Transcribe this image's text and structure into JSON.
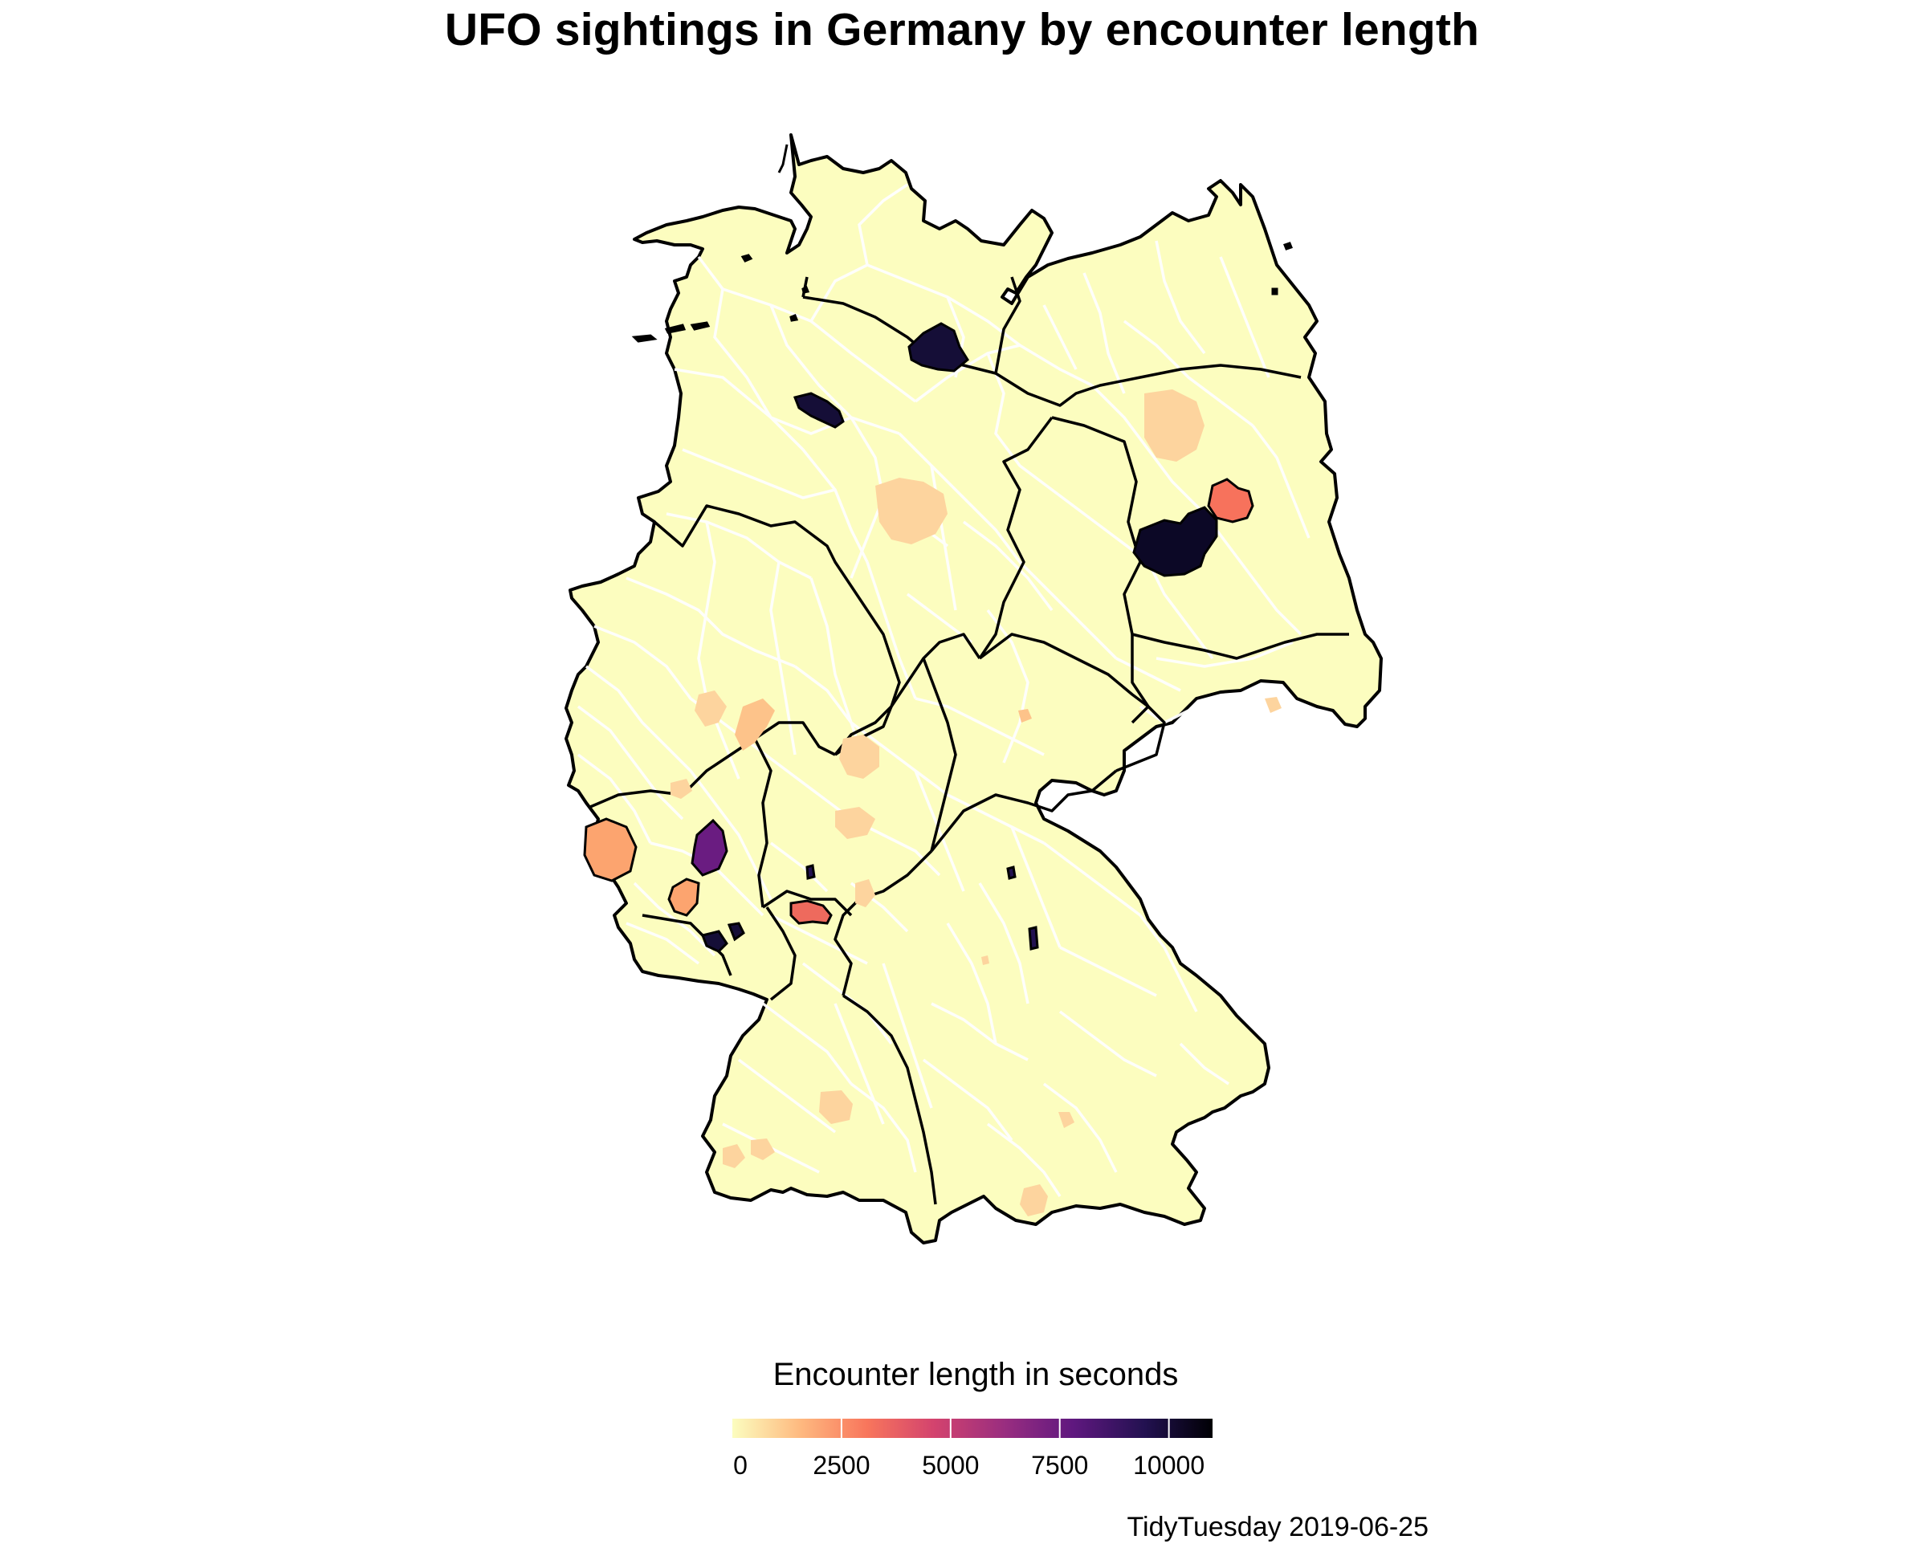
{
  "title": "UFO sightings in Germany by encounter length",
  "caption": "TidyTuesday 2019-06-25",
  "legend": {
    "title": "Encounter length in seconds",
    "ticks": [
      "0",
      "2500",
      "5000",
      "7500",
      "10000"
    ],
    "tick_values": [
      0,
      2500,
      5000,
      7500,
      10000
    ],
    "range": [
      0,
      11000
    ],
    "palette": "magma (reversed)",
    "colors": [
      "#FCFDBF",
      "#FEBA80",
      "#F8765C",
      "#D3436E",
      "#982D80",
      "#5F187F",
      "#221150",
      "#000004"
    ]
  },
  "map": {
    "region": "Germany",
    "district_border_color": "#ffffff",
    "state_border_color": "#000000",
    "base_fill": "#FCFDBF",
    "highlighted_districts": [
      {
        "location": "Hamburg",
        "value": 10500
      },
      {
        "location": "Bremen",
        "value": 10500
      },
      {
        "location": "Berlin",
        "value": 3400
      },
      {
        "location": "Potsdam-Mittelmark",
        "value": 10600
      },
      {
        "location": "Saarland east",
        "value": 9800
      },
      {
        "location": "Trier area",
        "value": 2000
      },
      {
        "location": "Birkenfeld",
        "value": 7000
      },
      {
        "location": "Kaiserslautern",
        "value": 2300
      },
      {
        "location": "Mannheim",
        "value": 3500
      },
      {
        "location": "Würzburg area",
        "value": 9500
      },
      {
        "location": "Hannover",
        "value": 900
      },
      {
        "location": "Prignitz",
        "value": 900
      },
      {
        "location": "Koblenz area",
        "value": 1500
      }
    ]
  }
}
